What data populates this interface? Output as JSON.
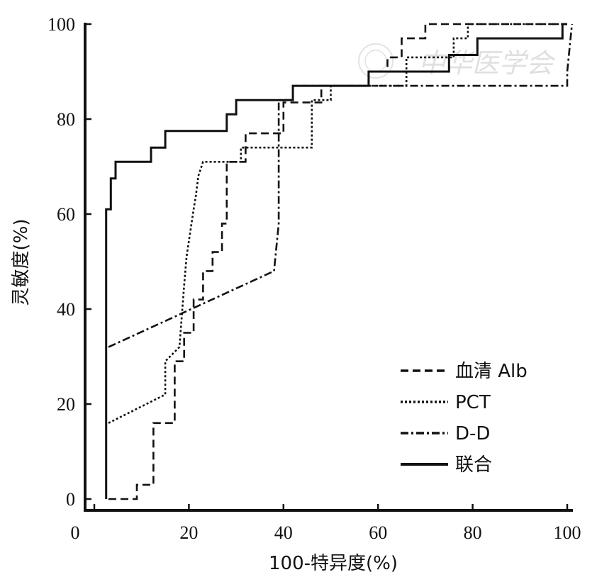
{
  "chart_data": {
    "type": "line",
    "xlabel": "100-特异度(%)",
    "ylabel": "灵敏度(%)",
    "xlim": [
      0,
      100
    ],
    "ylim": [
      0,
      100
    ],
    "xticks": [
      "0",
      "20",
      "40",
      "60",
      "80",
      "100"
    ],
    "yticks": [
      "0",
      "20",
      "40",
      "60",
      "80",
      "100"
    ],
    "grid": false,
    "legend_position": "bottom-right",
    "series": [
      {
        "name": "血清Alb",
        "legend_label": "血清 Alb",
        "style": "dashed",
        "points": [
          [
            3,
            0
          ],
          [
            9,
            0
          ],
          [
            9,
            3
          ],
          [
            12.5,
            3
          ],
          [
            12.5,
            16
          ],
          [
            17,
            16
          ],
          [
            17,
            29
          ],
          [
            19,
            29
          ],
          [
            19,
            35
          ],
          [
            21,
            35
          ],
          [
            21,
            42
          ],
          [
            23,
            42
          ],
          [
            23,
            48
          ],
          [
            25,
            48
          ],
          [
            25,
            52
          ],
          [
            27,
            52
          ],
          [
            27,
            58
          ],
          [
            28,
            58
          ],
          [
            28,
            71
          ],
          [
            32,
            71
          ],
          [
            32,
            77
          ],
          [
            40,
            77
          ],
          [
            40,
            83.5
          ],
          [
            48,
            83.5
          ],
          [
            48,
            87
          ],
          [
            58,
            87
          ],
          [
            58,
            90
          ],
          [
            62,
            90
          ],
          [
            62,
            93
          ],
          [
            65,
            93
          ],
          [
            65,
            97
          ],
          [
            70,
            97
          ],
          [
            70,
            100
          ],
          [
            100,
            100
          ]
        ]
      },
      {
        "name": "PCT",
        "legend_label": "PCT",
        "style": "dotted",
        "points": [
          [
            3,
            16
          ],
          [
            15,
            22
          ],
          [
            15,
            29
          ],
          [
            18,
            32
          ],
          [
            19,
            45
          ],
          [
            19.5,
            51
          ],
          [
            21,
            61
          ],
          [
            21.5,
            64
          ],
          [
            22,
            68
          ],
          [
            23,
            71
          ],
          [
            31,
            71
          ],
          [
            31,
            74
          ],
          [
            46,
            74
          ],
          [
            46,
            84
          ],
          [
            50,
            84
          ],
          [
            50,
            87
          ],
          [
            66,
            87
          ],
          [
            66,
            93
          ],
          [
            76,
            93
          ],
          [
            76,
            97
          ],
          [
            79,
            97
          ],
          [
            79,
            100
          ],
          [
            100,
            100
          ]
        ]
      },
      {
        "name": "D-D",
        "legend_label": "D-D",
        "style": "dash-dot",
        "points": [
          [
            3,
            32
          ],
          [
            38,
            48
          ],
          [
            39,
            58
          ],
          [
            39,
            84
          ],
          [
            42,
            84
          ],
          [
            42,
            87
          ],
          [
            100,
            87
          ],
          [
            100,
            90
          ],
          [
            101,
            100
          ]
        ]
      },
      {
        "name": "联合",
        "legend_label": "联合",
        "style": "solid",
        "points": [
          [
            2.5,
            0
          ],
          [
            2.5,
            61
          ],
          [
            3.5,
            61
          ],
          [
            3.5,
            67.5
          ],
          [
            4.5,
            67.5
          ],
          [
            4.5,
            71
          ],
          [
            12,
            71
          ],
          [
            12,
            74
          ],
          [
            15,
            74
          ],
          [
            15,
            77.5
          ],
          [
            28,
            77.5
          ],
          [
            28,
            81
          ],
          [
            30,
            81
          ],
          [
            30,
            84
          ],
          [
            42,
            84
          ],
          [
            42,
            87
          ],
          [
            58,
            87
          ],
          [
            58,
            90
          ],
          [
            75,
            90
          ],
          [
            75,
            93.5
          ],
          [
            81,
            93.5
          ],
          [
            81,
            97
          ],
          [
            99,
            97
          ],
          [
            99,
            100
          ],
          [
            100,
            100
          ]
        ]
      }
    ]
  },
  "watermark": {
    "text": "中华医学会"
  },
  "colors": {
    "ink": "#111111",
    "watermark": "#c8c8c8"
  }
}
